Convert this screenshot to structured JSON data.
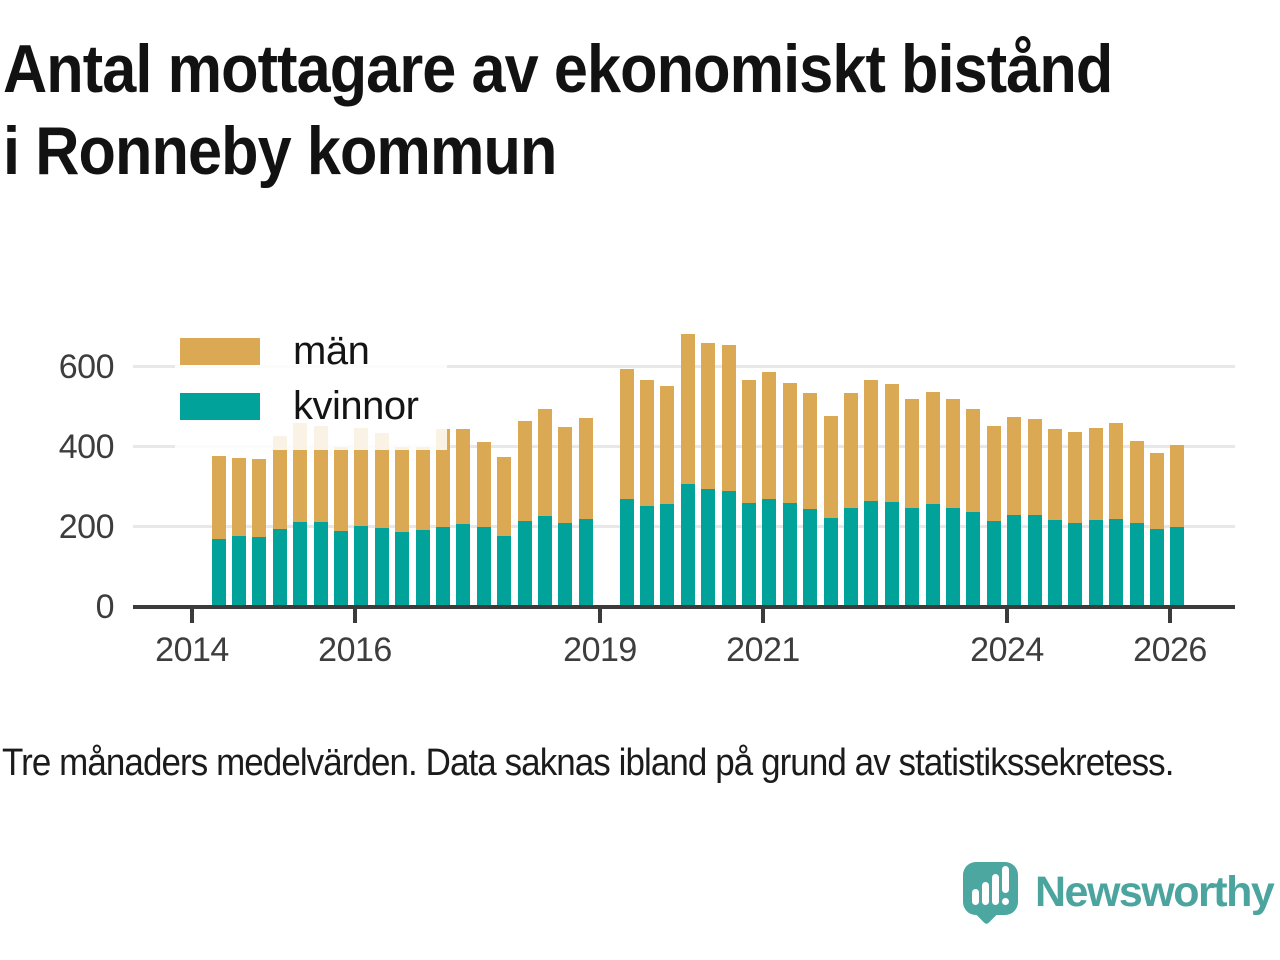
{
  "header": {
    "title_line1": "Antal mottagare av ekonomiskt bistånd",
    "title_line2": "i Ronneby kommun"
  },
  "legend": {
    "items": [
      {
        "label": "män",
        "color": "#DBA954"
      },
      {
        "label": "kvinnor",
        "color": "#00A29A"
      }
    ]
  },
  "footnote": "Tre månaders medelvärden. Data saknas ibland på grund av statistikssekretess.",
  "branding": {
    "wordmark": "Newsworthy",
    "logo_color": "#4CA7A0",
    "logo_icon": "speech-bubble-with-bar-chart-and-exclamation"
  },
  "colors": {
    "man": "#DBA954",
    "kvinnor": "#00A29A",
    "axis": "#3b3b3b",
    "gridline": "#e8e8e8",
    "text": "#1b1b1b"
  },
  "chart_data": {
    "type": "bar",
    "subtype": "stacked-vertical",
    "title": "Antal mottagare av ekonomiskt bistånd i Ronneby kommun",
    "frequency": "quarterly (tre månaders medelvärden)",
    "x_start": "2014 Q2",
    "x_end": "2026 Q1",
    "note": "48 quarterly slots; null = data saknas (statistikssekretess), gap in early 2019",
    "stack_order_bottom_to_top": [
      "kvinnor",
      "män"
    ],
    "series": [
      {
        "name": "kvinnor",
        "color": "#00A29A",
        "values": [
          170,
          178,
          174,
          195,
          213,
          212,
          191,
          202,
          197,
          187,
          192,
          199,
          207,
          201,
          178,
          216,
          228,
          211,
          219,
          null,
          270,
          253,
          257,
          307,
          294,
          291,
          259,
          270,
          260,
          244,
          222,
          247,
          266,
          263,
          248,
          258,
          247,
          237,
          215,
          230,
          230,
          218,
          211,
          218,
          220,
          209,
          195,
          200
        ]
      },
      {
        "name": "män",
        "color": "#DBA954",
        "values": [
          208,
          194,
          195,
          232,
          246,
          241,
          209,
          245,
          237,
          213,
          207,
          246,
          238,
          211,
          196,
          250,
          267,
          240,
          253,
          null,
          325,
          314,
          296,
          375,
          367,
          364,
          309,
          318,
          300,
          290,
          256,
          288,
          302,
          295,
          272,
          280,
          272,
          257,
          238,
          246,
          239,
          227,
          226,
          230,
          239,
          207,
          191,
          205
        ]
      }
    ],
    "totals": [
      378,
      372,
      369,
      427,
      459,
      453,
      400,
      447,
      434,
      400,
      399,
      445,
      445,
      412,
      374,
      466,
      495,
      451,
      472,
      null,
      595,
      567,
      553,
      682,
      661,
      655,
      568,
      588,
      560,
      534,
      478,
      535,
      568,
      558,
      520,
      538,
      519,
      494,
      453,
      476,
      469,
      445,
      437,
      448,
      459,
      416,
      386,
      405
    ],
    "y_axis": {
      "ticks": [
        0,
        200,
        400,
        600
      ],
      "gridlines": [
        200,
        400,
        600
      ],
      "range": [
        0,
        700
      ]
    },
    "x_axis": {
      "tick_labels": [
        "2014",
        "2016",
        "2019",
        "2021",
        "2024",
        "2026"
      ],
      "tick_years": [
        2014,
        2016,
        2019,
        2021,
        2024,
        2026
      ]
    },
    "legend_position": "top-left inside plot",
    "grid": "horizontal only"
  }
}
